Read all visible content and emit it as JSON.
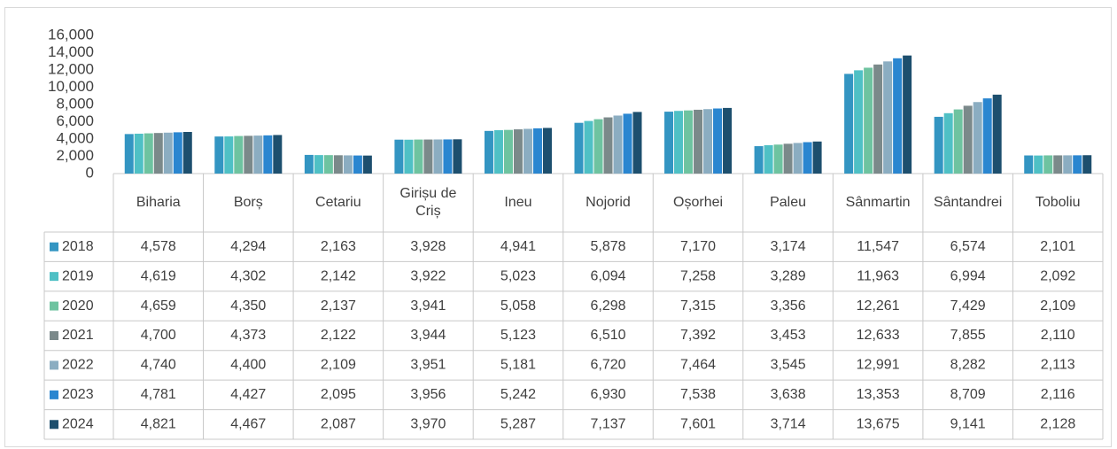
{
  "chart_data": {
    "type": "bar",
    "categories": [
      "Biharia",
      "Borș",
      "Cetariu",
      "Girișu de Criș",
      "Ineu",
      "Nojorid",
      "Oșorhei",
      "Paleu",
      "Sânmartin",
      "Sântandrei",
      "Toboliu"
    ],
    "ylim": [
      0,
      16000
    ],
    "yticks": [
      0,
      {
        "value": 2000,
        "label": "2,000"
      },
      {
        "value": 4000,
        "label": "4,000"
      },
      {
        "value": 6000,
        "label": "6,000"
      },
      {
        "value": 8000,
        "label": "8,000"
      },
      {
        "value": 10000,
        "label": "10,000"
      },
      {
        "value": 12000,
        "label": "12,000"
      },
      {
        "value": 14000,
        "label": "14,000"
      },
      {
        "value": 16000,
        "label": "16,000"
      }
    ],
    "series": [
      {
        "name": "2018",
        "color": "#3395c2",
        "values": [
          4578,
          4294,
          2163,
          3928,
          4941,
          5878,
          7170,
          3174,
          11547,
          6574,
          2101
        ],
        "value_labels": [
          "4,578",
          "4,294",
          "2,163",
          "3,928",
          "4,941",
          "5,878",
          "7,170",
          "3,174",
          "11,547",
          "6,574",
          "2,101"
        ]
      },
      {
        "name": "2019",
        "color": "#4fc0c5",
        "values": [
          4619,
          4302,
          2142,
          3922,
          5023,
          6094,
          7258,
          3289,
          11963,
          6994,
          2092
        ],
        "value_labels": [
          "4,619",
          "4,302",
          "2,142",
          "3,922",
          "5,023",
          "6,094",
          "7,258",
          "3,289",
          "11,963",
          "6,994",
          "2,092"
        ]
      },
      {
        "name": "2020",
        "color": "#6ec3a0",
        "values": [
          4659,
          4350,
          2137,
          3941,
          5058,
          6298,
          7315,
          3356,
          12261,
          7429,
          2109
        ],
        "value_labels": [
          "4,659",
          "4,350",
          "2,137",
          "3,941",
          "5,058",
          "6,298",
          "7,315",
          "3,356",
          "12,261",
          "7,429",
          "2,109"
        ]
      },
      {
        "name": "2021",
        "color": "#7b898a",
        "values": [
          4700,
          4373,
          2122,
          3944,
          5123,
          6510,
          7392,
          3453,
          12633,
          7855,
          2110
        ],
        "value_labels": [
          "4,700",
          "4,373",
          "2,122",
          "3,944",
          "5,123",
          "6,510",
          "7,392",
          "3,453",
          "12,633",
          "7,855",
          "2,110"
        ]
      },
      {
        "name": "2022",
        "color": "#8badc1",
        "values": [
          4740,
          4400,
          2109,
          3951,
          5181,
          6720,
          7464,
          3545,
          12991,
          8282,
          2113
        ],
        "value_labels": [
          "4,740",
          "4,400",
          "2,109",
          "3,951",
          "5,181",
          "6,720",
          "7,464",
          "3,545",
          "12,991",
          "8,282",
          "2,113"
        ]
      },
      {
        "name": "2023",
        "color": "#2a86d0",
        "values": [
          4781,
          4427,
          2095,
          3956,
          5242,
          6930,
          7538,
          3638,
          13353,
          8709,
          2116
        ],
        "value_labels": [
          "4,781",
          "4,427",
          "2,095",
          "3,956",
          "5,242",
          "6,930",
          "7,538",
          "3,638",
          "13,353",
          "8,709",
          "2,116"
        ]
      },
      {
        "name": "2024",
        "color": "#1d4f6e",
        "values": [
          4821,
          4467,
          2087,
          3970,
          5287,
          7137,
          7601,
          3714,
          13675,
          9141,
          2128
        ],
        "value_labels": [
          "4,821",
          "4,467",
          "2,087",
          "3,970",
          "5,287",
          "7,137",
          "7,601",
          "3,714",
          "13,675",
          "9,141",
          "2,128"
        ]
      }
    ]
  }
}
